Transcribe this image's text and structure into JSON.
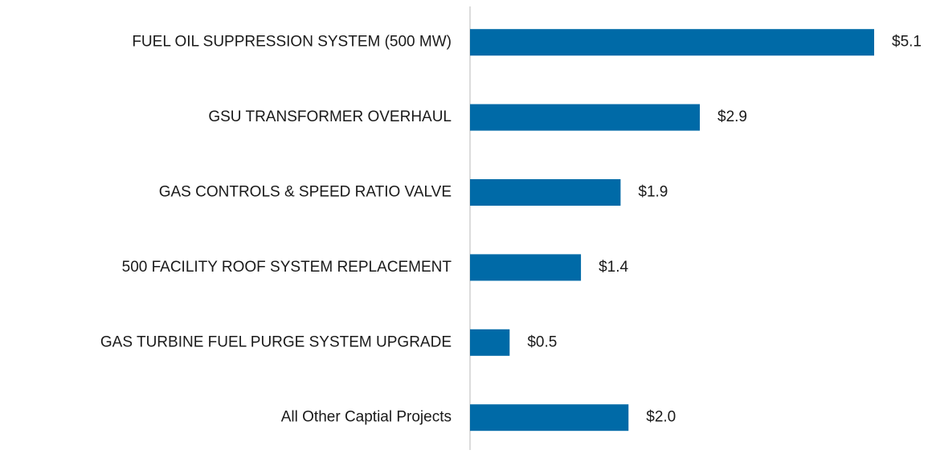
{
  "chart_data": {
    "type": "bar",
    "orientation": "horizontal",
    "categories": [
      "FUEL OIL SUPPRESSION SYSTEM (500 MW)",
      "GSU TRANSFORMER OVERHAUL",
      "GAS CONTROLS & SPEED RATIO VALVE",
      "500 FACILITY ROOF SYSTEM REPLACEMENT",
      "GAS TURBINE FUEL PURGE SYSTEM UPGRADE",
      "All Other Captial Projects"
    ],
    "values": [
      5.1,
      2.9,
      1.9,
      1.4,
      0.5,
      2.0
    ],
    "value_labels": [
      "$5.1",
      "$2.9",
      "$1.9",
      "$1.4",
      "$0.5",
      "$2.0"
    ],
    "color": "#006aa7"
  }
}
